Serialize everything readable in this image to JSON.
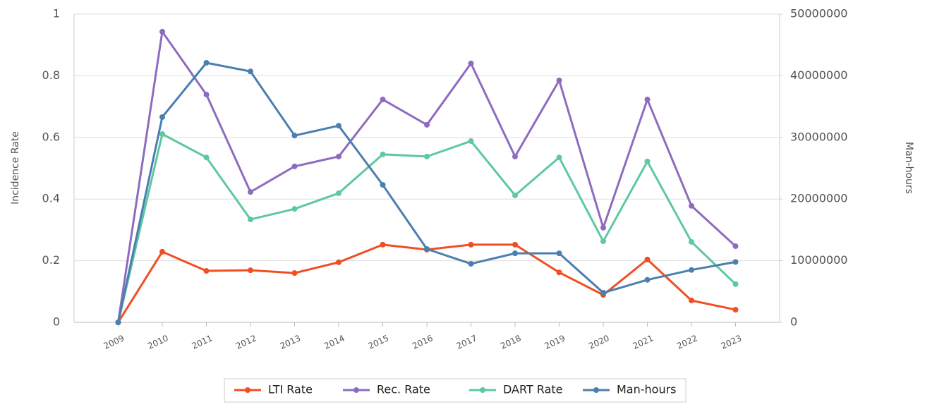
{
  "chart_data": {
    "type": "line",
    "y_label": "Incidence Rate",
    "y2_label": "Man-hours",
    "categories": [
      "2009",
      "2010",
      "2011",
      "2012",
      "2013",
      "2014",
      "2015",
      "2016",
      "2017",
      "2018",
      "2019",
      "2020",
      "2021",
      "2022",
      "2023"
    ],
    "series": [
      {
        "name": "LTI Rate",
        "color": "#f04e23",
        "values": [
          0,
          0.229,
          0.167,
          0.169,
          0.16,
          0.195,
          0.252,
          0.236,
          0.252,
          0.252,
          0.162,
          0.089,
          0.204,
          0.071,
          0.041
        ]
      },
      {
        "name": "Rec. Rate",
        "color": "#8e6bbf",
        "values": [
          0,
          0.943,
          0.739,
          0.423,
          0.506,
          0.538,
          0.723,
          0.641,
          0.84,
          0.538,
          0.785,
          0.307,
          0.723,
          0.378,
          0.247
        ]
      },
      {
        "name": "DART Rate",
        "color": "#5ec8a0",
        "values": [
          0,
          0.611,
          0.535,
          0.334,
          0.368,
          0.419,
          0.545,
          0.538,
          0.588,
          0.412,
          0.535,
          0.263,
          0.522,
          0.261,
          0.124
        ]
      },
      {
        "name": "Man-hours",
        "color": "#4a7fb0",
        "axis": "y2",
        "values": [
          0,
          33300000,
          42100000,
          40700000,
          30300000,
          31900000,
          22300000,
          11900000,
          9500000,
          11200000,
          11200000,
          4800000,
          6900000,
          8500000,
          9800000
        ]
      }
    ],
    "ylim": [
      0,
      1
    ],
    "yticks": [
      0,
      0.2,
      0.4,
      0.6,
      0.8,
      1
    ],
    "y2lim": [
      0,
      50000000
    ],
    "y2ticks": [
      0,
      10000000,
      20000000,
      30000000,
      40000000,
      50000000
    ],
    "grid": true,
    "legend": "bottom"
  }
}
